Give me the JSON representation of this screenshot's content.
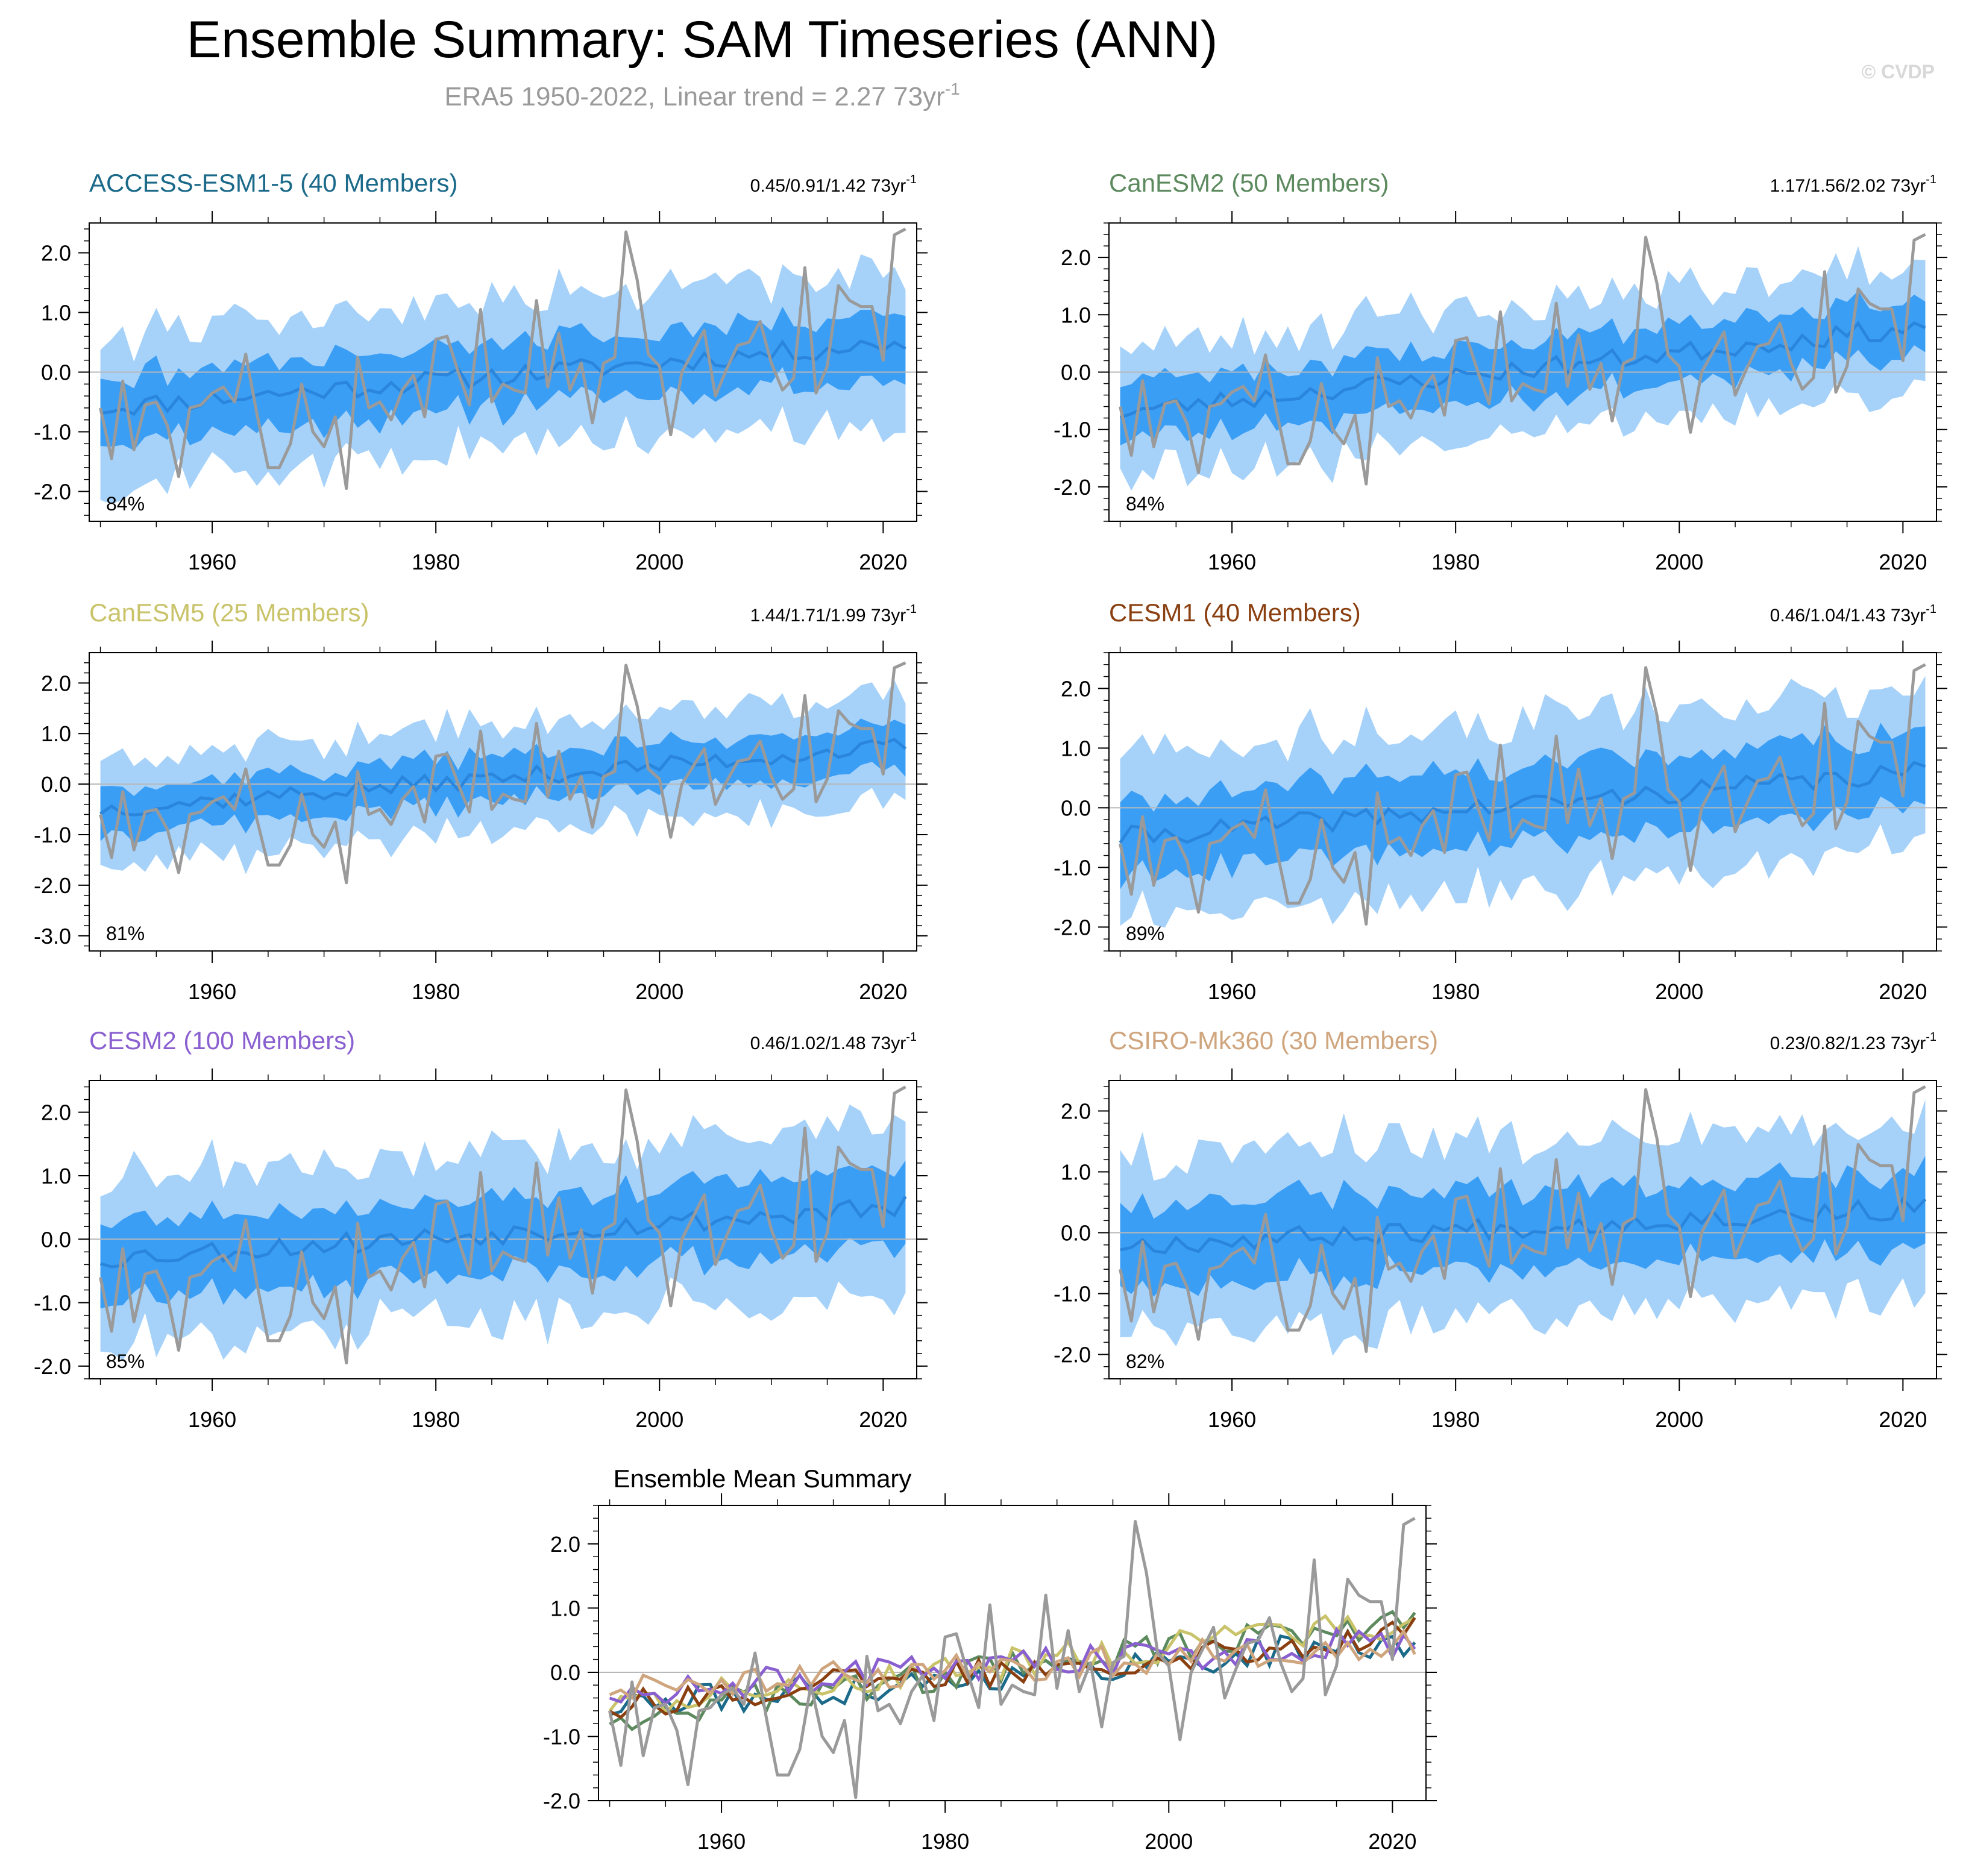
{
  "header": {
    "title": "Ensemble Summary: SAM Timeseries (ANN)",
    "subtitle": "ERA5 1950-2022, Linear trend = 2.27 73yr",
    "subtitle_sup": "-1",
    "watermark": "© CVDP"
  },
  "colors": {
    "obs": "#9a9a9a",
    "band_outer": "#a6d2fa",
    "band_inner": "#3b9ef5",
    "ens_mean": "#2a86dc",
    "zero_line": "#b8b8b8",
    "axis": "#000000"
  },
  "chart_data": [
    {
      "type": "line",
      "panel": "ACCESS-ESM1-5",
      "title": "ACCESS-ESM1-5 (40 Members)",
      "title_color": "#1b6a8a",
      "trend": "0.45/0.91/1.42 73yr",
      "trend_sup": "-1",
      "pct": "84%",
      "ylim": [
        -2.5,
        2.5
      ],
      "yticks": [
        2.0,
        1.0,
        0.0,
        -1.0,
        -2.0
      ],
      "yticklabels": [
        "2.0",
        "1.0",
        "0.0",
        "-1.0",
        "-2.0"
      ],
      "xlim": [
        1949,
        2023
      ],
      "xticks": [
        "1960",
        "1980",
        "2000",
        "2020"
      ],
      "mean_start": -0.6,
      "mean_end": 0.5,
      "inner_spread": 0.55,
      "outer_spread": 1.15,
      "seed": 11
    },
    {
      "type": "line",
      "panel": "CanESM2",
      "title": "CanESM2 (50 Members)",
      "title_color": "#5c8a5e",
      "trend": "1.17/1.56/2.02 73yr",
      "trend_sup": "-1",
      "pct": "84%",
      "ylim": [
        -2.6,
        2.6
      ],
      "yticks": [
        2.0,
        1.0,
        0.0,
        -1.0,
        -2.0
      ],
      "yticklabels": [
        "2.0",
        "1.0",
        "0.0",
        "-1.0",
        "-2.0"
      ],
      "xlim": [
        1949,
        2023
      ],
      "xticks": [
        "1960",
        "1980",
        "2000",
        "2020"
      ],
      "mean_start": -0.7,
      "mean_end": 0.8,
      "inner_spread": 0.5,
      "outer_spread": 1.05,
      "seed": 23
    },
    {
      "type": "line",
      "panel": "CanESM5",
      "title": "CanESM5 (25 Members)",
      "title_color": "#c9c36a",
      "trend": "1.44/1.71/1.99 73yr",
      "trend_sup": "-1",
      "pct": "81%",
      "ylim": [
        -3.3,
        2.6
      ],
      "yticks": [
        2.0,
        1.0,
        0.0,
        -1.0,
        -2.0,
        -3.0
      ],
      "yticklabels": [
        "2.0",
        "1.0",
        "0.0",
        "-1.0",
        "-2.0",
        "-3.0"
      ],
      "xlim": [
        1949,
        2023
      ],
      "xticks": [
        "1960",
        "1980",
        "2000",
        "2020"
      ],
      "mean_start": -0.5,
      "mean_end": 0.75,
      "inner_spread": 0.45,
      "outer_spread": 1.0,
      "seed": 37
    },
    {
      "type": "line",
      "panel": "CESM1",
      "title": "CESM1 (40 Members)",
      "title_color": "#8a3f10",
      "trend": "0.46/1.04/1.43 73yr",
      "trend_sup": "-1",
      "pct": "89%",
      "ylim": [
        -2.4,
        2.6
      ],
      "yticks": [
        2.0,
        1.0,
        0.0,
        -1.0,
        -2.0
      ],
      "yticklabels": [
        "2.0",
        "1.0",
        "0.0",
        "-1.0",
        "-2.0"
      ],
      "xlim": [
        1949,
        2023
      ],
      "xticks": [
        "1960",
        "1980",
        "2000",
        "2020"
      ],
      "mean_start": -0.5,
      "mean_end": 0.6,
      "inner_spread": 0.65,
      "outer_spread": 1.25,
      "seed": 41
    },
    {
      "type": "line",
      "panel": "CESM2",
      "title": "CESM2 (100 Members)",
      "title_color": "#8a5fd0",
      "trend": "0.46/1.02/1.48 73yr",
      "trend_sup": "-1",
      "pct": "85%",
      "ylim": [
        -2.2,
        2.5
      ],
      "yticks": [
        2.0,
        1.0,
        0.0,
        -1.0,
        -2.0
      ],
      "yticklabels": [
        "2.0",
        "1.0",
        "0.0",
        "-1.0",
        "-2.0"
      ],
      "xlim": [
        1949,
        2023
      ],
      "xticks": [
        "1960",
        "1980",
        "2000",
        "2020"
      ],
      "mean_start": -0.3,
      "mean_end": 0.5,
      "inner_spread": 0.6,
      "outer_spread": 1.2,
      "seed": 53
    },
    {
      "type": "line",
      "panel": "CSIRO-Mk360",
      "title": "CSIRO-Mk360 (30 Members)",
      "title_color": "#cfa57e",
      "trend": "0.23/0.82/1.23 73yr",
      "trend_sup": "-1",
      "pct": "82%",
      "ylim": [
        -2.4,
        2.5
      ],
      "yticks": [
        2.0,
        1.0,
        0.0,
        -1.0,
        -2.0
      ],
      "yticklabels": [
        "2.0",
        "1.0",
        "0.0",
        "-1.0",
        "-2.0"
      ],
      "xlim": [
        1949,
        2023
      ],
      "xticks": [
        "1960",
        "1980",
        "2000",
        "2020"
      ],
      "mean_start": -0.2,
      "mean_end": 0.4,
      "inner_spread": 0.65,
      "outer_spread": 1.3,
      "seed": 67
    },
    {
      "type": "line",
      "panel": "Ensemble Mean Summary",
      "title": "Ensemble Mean Summary",
      "title_color": "#000000",
      "ylim": [
        -2.0,
        2.6
      ],
      "yticks": [
        2.0,
        1.0,
        0.0,
        -1.0,
        -2.0
      ],
      "yticklabels": [
        "2.0",
        "1.0",
        "0.0",
        "-1.0",
        "-2.0"
      ],
      "xlim": [
        1949,
        2023
      ],
      "xticks": [
        "1960",
        "1980",
        "2000",
        "2020"
      ],
      "series": [
        {
          "name": "ACCESS-ESM1-5",
          "color": "#1b6a8a",
          "start": -0.55,
          "end": 0.5,
          "seed": 111
        },
        {
          "name": "CanESM2",
          "color": "#5c8a5e",
          "start": -0.7,
          "end": 0.85,
          "seed": 123
        },
        {
          "name": "CanESM5",
          "color": "#c9c36a",
          "start": -0.5,
          "end": 0.8,
          "seed": 137
        },
        {
          "name": "CESM1",
          "color": "#8a3f10",
          "start": -0.5,
          "end": 0.6,
          "seed": 141
        },
        {
          "name": "CESM2",
          "color": "#8a5fd0",
          "start": -0.3,
          "end": 0.5,
          "seed": 153
        },
        {
          "name": "CSIRO-Mk360",
          "color": "#cfa57e",
          "start": -0.25,
          "end": 0.45,
          "seed": 167
        }
      ]
    }
  ],
  "obs_series": {
    "name": "ERA5",
    "years_start": 1950,
    "values": [
      -0.6,
      -1.45,
      -0.15,
      -1.3,
      -0.55,
      -0.5,
      -0.9,
      -1.75,
      -0.6,
      -0.55,
      -0.35,
      -0.25,
      -0.5,
      0.3,
      -0.7,
      -1.6,
      -1.6,
      -1.2,
      -0.2,
      -1.0,
      -1.25,
      -0.75,
      -1.95,
      0.25,
      -0.6,
      -0.5,
      -0.8,
      -0.3,
      -0.05,
      -0.75,
      0.55,
      0.6,
      0.0,
      -0.55,
      1.05,
      -0.5,
      -0.2,
      -0.3,
      -0.35,
      1.2,
      -0.25,
      0.65,
      -0.3,
      0.15,
      -0.85,
      0.15,
      0.25,
      2.35,
      1.55,
      0.3,
      0.1,
      -1.05,
      0.0,
      0.35,
      0.7,
      -0.4,
      0.05,
      0.45,
      0.5,
      0.85,
      0.15,
      -0.3,
      -0.1,
      1.75,
      -0.35,
      0.1,
      1.45,
      1.2,
      1.1,
      1.1,
      0.2,
      2.3,
      2.4
    ]
  }
}
